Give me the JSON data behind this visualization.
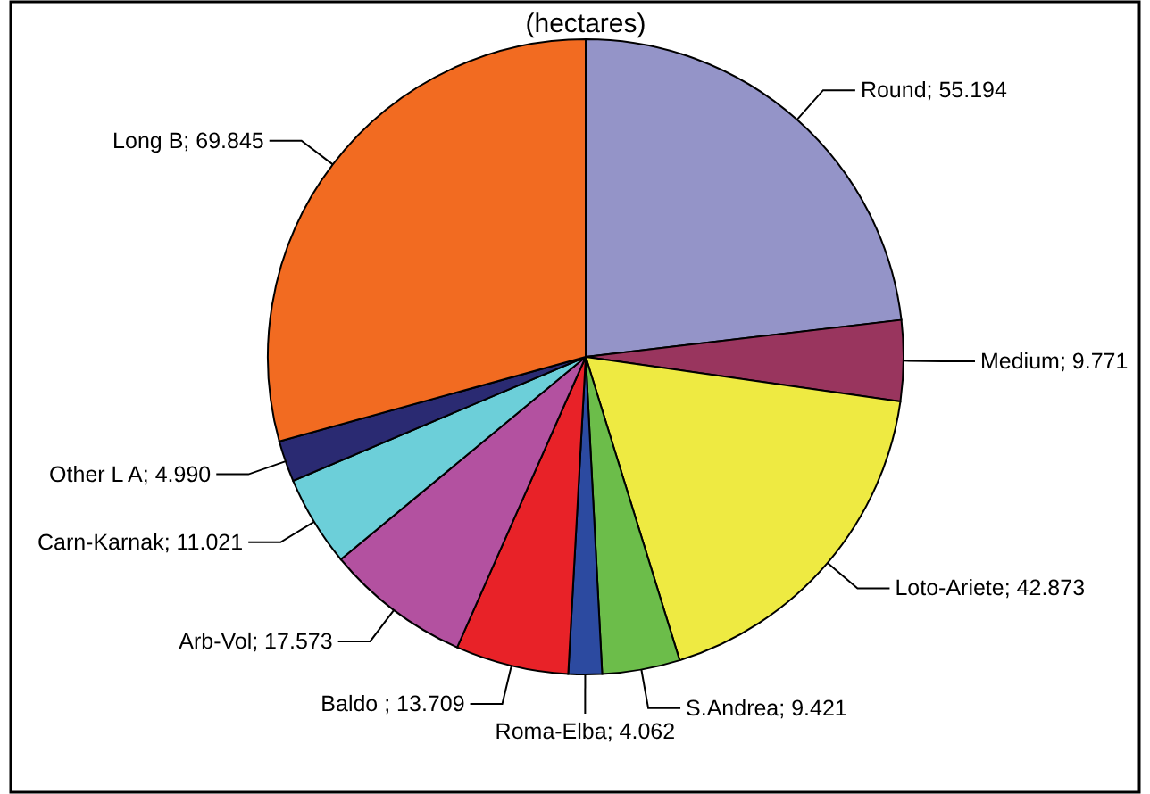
{
  "chart_data": {
    "type": "pie",
    "title": "(hectares)",
    "categories": [
      "Round",
      "Medium",
      "Loto-Ariete",
      "S.Andrea",
      "Roma-Elba",
      "Baldo ",
      "Arb-Vol",
      "Carn-Karnak",
      "Other L A",
      "Long B"
    ],
    "values": [
      55.194,
      9.771,
      42.873,
      9.421,
      4.062,
      13.709,
      17.573,
      11.021,
      4.99,
      69.845
    ],
    "value_labels": [
      "55.194",
      "9.771",
      "42.873",
      "9.421",
      "4.062",
      "13.709",
      "17.573",
      "11.021",
      "4.990",
      "69.845"
    ],
    "colors": [
      "#9494c8",
      "#99355e",
      "#eeea42",
      "#6cbd4a",
      "#2c4aa0",
      "#e82228",
      "#b351a0",
      "#6ccfd9",
      "#2a2a72",
      "#f26b21"
    ]
  }
}
